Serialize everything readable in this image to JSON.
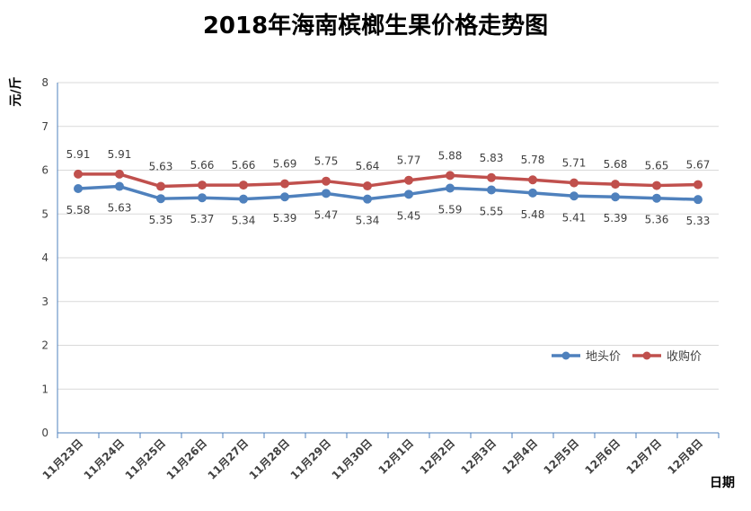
{
  "chart_data": {
    "type": "line",
    "title": "2018年海南槟榔生果价格走势图",
    "xlabel": "日期",
    "ylabel": "元/斤",
    "ylim": [
      0,
      8
    ],
    "yticks": [
      0,
      1,
      2,
      3,
      4,
      5,
      6,
      7,
      8
    ],
    "grid": true,
    "legend_position": "right",
    "categories": [
      "11月23日",
      "11月24日",
      "11月25日",
      "11月26日",
      "11月27日",
      "11月28日",
      "11月29日",
      "11月30日",
      "12月1日",
      "12月2日",
      "12月3日",
      "12月4日",
      "12月5日",
      "12月6日",
      "12月7日",
      "12月8日"
    ],
    "series": [
      {
        "name": "地头价",
        "color": "#4F81BD",
        "values": [
          5.58,
          5.63,
          5.35,
          5.37,
          5.34,
          5.39,
          5.47,
          5.34,
          5.45,
          5.59,
          5.55,
          5.48,
          5.41,
          5.39,
          5.36,
          5.33
        ],
        "label_position": "below"
      },
      {
        "name": "收购价",
        "color": "#C0504D",
        "values": [
          5.91,
          5.91,
          5.63,
          5.66,
          5.66,
          5.69,
          5.75,
          5.64,
          5.77,
          5.88,
          5.83,
          5.78,
          5.71,
          5.68,
          5.65,
          5.67
        ],
        "label_position": "above"
      }
    ]
  }
}
